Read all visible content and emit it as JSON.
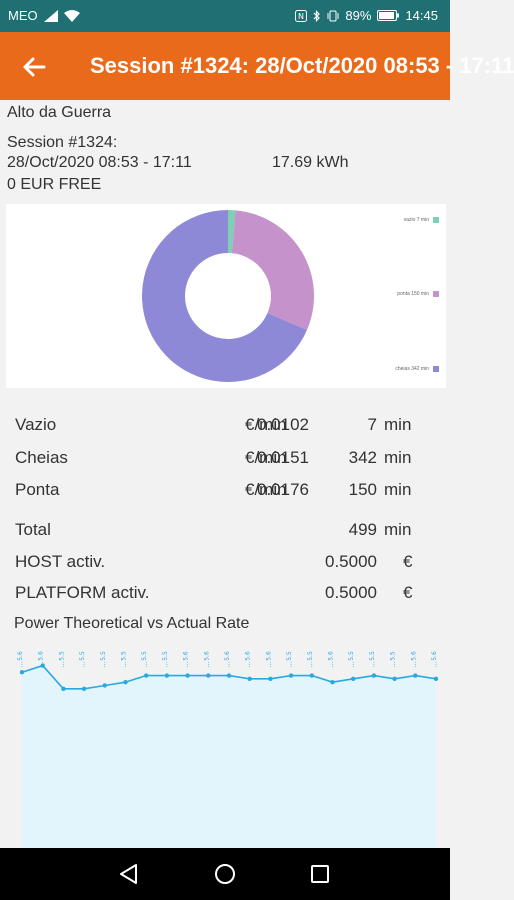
{
  "status_bar": {
    "carrier": "MEO",
    "battery": "89%",
    "time": "14:45"
  },
  "app_bar": {
    "title": "Session #1324: 28/Oct/2020 08:53 - 17:11",
    "back_icon": "arrow-left-icon"
  },
  "session": {
    "location": "Alto da Guerra",
    "id_line": "Session #1324:",
    "time_range": "28/Oct/2020 08:53 - 17:11",
    "energy": "17.69 kWh",
    "cost": "0 EUR FREE"
  },
  "chart_data": [
    {
      "type": "pie",
      "donut": true,
      "categories": [
        "vazio 7 min",
        "ponta 150 min",
        "cheias 342 min"
      ],
      "values": [
        7,
        150,
        342
      ],
      "colors": [
        "#7fcfb5",
        "#c592cc",
        "#8e89d6"
      ]
    },
    {
      "type": "area",
      "title": "Power Theoretical vs Actual Rate",
      "values": [
        5.3,
        5.5,
        4.8,
        4.8,
        4.9,
        5.0,
        5.2,
        5.2,
        5.2,
        5.2,
        5.2,
        5.1,
        5.1,
        5.2,
        5.2,
        5.0,
        5.1,
        5.2,
        5.1,
        5.2,
        5.1
      ],
      "data_labels": [
        "5.6",
        "5.6",
        "5.5",
        "5.5",
        "5.5",
        "5.5",
        "5.5",
        "5.5",
        "5.6",
        "5.6",
        "5.6",
        "5.6",
        "5.6",
        "5.5",
        "5.5",
        "5.6",
        "5.5",
        "5.5",
        "5.5",
        "5.6",
        "5.6"
      ],
      "ylim": [
        0,
        6
      ],
      "colors": {
        "line": "#29a9e0",
        "fill": "#e2f5fd",
        "label": "#29a9e0"
      }
    }
  ],
  "rates": [
    {
      "name": "Vazio",
      "rate": "0.0102",
      "unit": "€/min",
      "minutes": "7",
      "min_unit": "min"
    },
    {
      "name": "Cheias",
      "rate": "0.0151",
      "unit": "€/min",
      "minutes": "342",
      "min_unit": "min"
    },
    {
      "name": "Ponta",
      "rate": "0.0176",
      "unit": "€/min",
      "minutes": "150",
      "min_unit": "min"
    }
  ],
  "summary": {
    "total_label": "Total",
    "total_value": "499",
    "total_unit": "min",
    "host_label": "HOST activ.",
    "host_value": "0.5000",
    "host_unit": "€",
    "platform_label": "PLATFORM activ.",
    "platform_value": "0.5000",
    "platform_unit": "€"
  },
  "nav": {
    "back": "triangle-back-icon",
    "home": "circle-home-icon",
    "recents": "square-recents-icon"
  }
}
